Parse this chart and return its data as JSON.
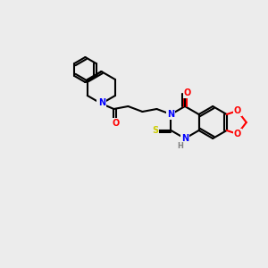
{
  "background_color": "#ececec",
  "bond_color": "#000000",
  "bond_width": 1.5,
  "atom_colors": {
    "N": "#0000ff",
    "O": "#ff0000",
    "S": "#cccc00",
    "H": "#808080",
    "C": "#000000"
  }
}
